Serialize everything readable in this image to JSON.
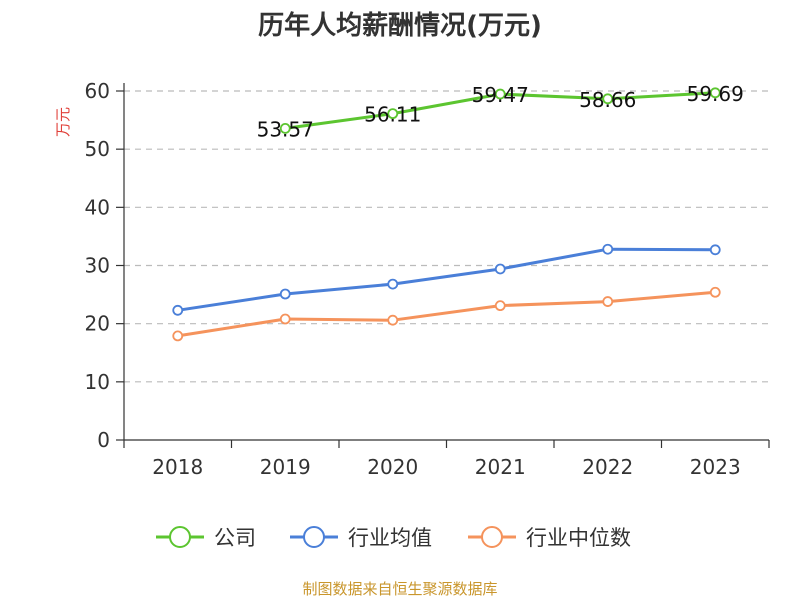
{
  "chart_data": {
    "type": "line",
    "title": "历年人均薪酬情况(万元)",
    "ylabel": "万元",
    "xlabel": "",
    "categories": [
      "2018",
      "2019",
      "2020",
      "2021",
      "2022",
      "2023"
    ],
    "ylim": [
      0,
      60
    ],
    "yticks": [
      0,
      10,
      20,
      30,
      40,
      50,
      60
    ],
    "grid": "horizontal dashed",
    "legend_position": "bottom",
    "series": [
      {
        "name": "公司",
        "color": "#5cc530",
        "values": [
          null,
          53.57,
          56.11,
          59.47,
          58.66,
          59.69
        ],
        "show_labels": true
      },
      {
        "name": "行业均值",
        "color": "#4a7fd8",
        "values": [
          22.3,
          25.1,
          26.8,
          29.4,
          32.8,
          32.7
        ],
        "show_labels": false
      },
      {
        "name": "行业中位数",
        "color": "#f5935c",
        "values": [
          17.9,
          20.8,
          20.6,
          23.1,
          23.8,
          25.4
        ],
        "show_labels": false
      }
    ]
  },
  "source": "制图数据来自恒生聚源数据库"
}
